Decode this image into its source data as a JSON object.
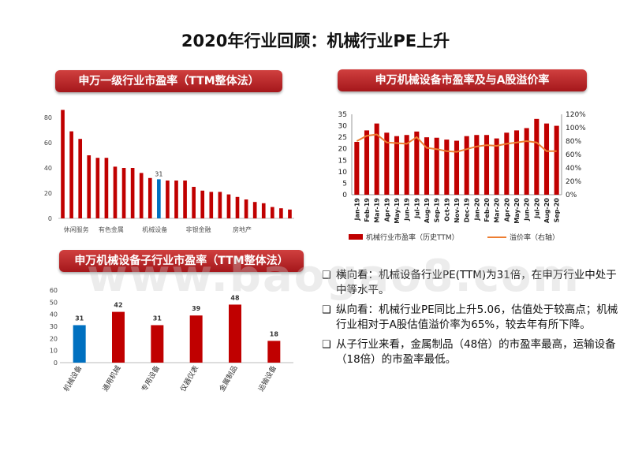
{
  "page_title": "2020年行业回顾：机械行业PE上升",
  "panels": {
    "industry_pe": "申万一级行业市盈率（TTM整体法）",
    "machinery_pe": "申万机械设备市盈率及与A股溢价率",
    "subsector_pe": "申万机械设备子行业市盈率（TTM整体法）"
  },
  "colors": {
    "red": "#c00000",
    "blue": "#0070c0",
    "orange": "#ed7d31",
    "panel": "#b31f23"
  },
  "chart_data": [
    {
      "type": "bar",
      "title": "申万一级行业市盈率（TTM整体法）",
      "values": [
        86,
        69,
        63,
        50,
        48,
        48,
        41,
        40,
        40,
        36,
        32,
        31,
        30,
        30,
        30,
        25,
        22,
        21,
        21,
        19,
        17,
        15,
        13,
        12,
        9,
        8,
        7
      ],
      "highlight_index": 11,
      "highlight_label": "31",
      "visible_category_labels": [
        "休闲服务",
        "有色金属",
        "机械设备",
        "非银金融",
        "房地产"
      ],
      "ylim": [
        0,
        90
      ],
      "yticks": [
        0,
        20,
        40,
        60,
        80
      ]
    },
    {
      "type": "bar+line",
      "title": "申万机械设备市盈率及与A股溢价率",
      "categories": [
        "Jan-19",
        "Feb-19",
        "Mar-19",
        "Apr-19",
        "May-19",
        "Jun-19",
        "Jul-19",
        "Aug-19",
        "Sep-19",
        "Oct-19",
        "Nov-19",
        "Dec-19",
        "Jan-20",
        "Feb-20",
        "Mar-20",
        "Apr-20",
        "May-20",
        "Jun-20",
        "Jul-20",
        "Aug-20",
        "Sep-20"
      ],
      "series": [
        {
          "name": "机械行业市盈率（历史TTM）",
          "axis": "left",
          "type": "bar",
          "values": [
            23,
            28,
            31,
            27,
            25.5,
            26,
            27.5,
            25,
            24.8,
            24,
            23.5,
            25.5,
            26,
            26,
            24.5,
            27,
            28,
            29,
            33,
            31,
            30
          ]
        },
        {
          "name": "溢价率（右轴）",
          "axis": "right",
          "type": "line",
          "values": [
            80,
            88,
            90,
            78,
            77,
            76,
            86,
            70,
            68,
            65,
            64,
            68,
            72,
            74,
            73,
            76,
            78,
            80,
            78,
            65,
            65
          ]
        }
      ],
      "left_ylim": [
        0,
        35
      ],
      "left_yticks": [
        0,
        5,
        10,
        15,
        20,
        25,
        30,
        35
      ],
      "right_ylim": [
        0,
        120
      ],
      "right_yticks": [
        "0%",
        "20%",
        "40%",
        "60%",
        "80%",
        "100%",
        "120%"
      ],
      "legend_placement": "bottom"
    },
    {
      "type": "bar",
      "title": "申万机械设备子行业市盈率（TTM整体法）",
      "categories": [
        "机械设备",
        "通用机械",
        "专用设备",
        "仪器仪表",
        "金属制品",
        "运输设备"
      ],
      "values": [
        31,
        42,
        31,
        39,
        48,
        18
      ],
      "highlight_index": 0,
      "ylim": [
        0,
        60
      ],
      "yticks": [
        0,
        10,
        20,
        30,
        40,
        50,
        60
      ]
    }
  ],
  "bullets": [
    {
      "icon": "checkbox-icon",
      "text": "横向看：机械设备行业PE(TTM)为31倍，在申万行业中处于中等水平。"
    },
    {
      "icon": "checkbox-icon",
      "text": "纵向看：机械行业PE同比上升5.06，估值处于较高点；机械行业相对于A股估值溢价率为65%，较去年有所下降。"
    },
    {
      "icon": "checkbox-icon",
      "text": "从子行业来看，金属制品（48倍）的市盈率最高，运输设备（18倍）的市盈率最低。"
    }
  ],
  "bullet_marker": "❑",
  "watermark": "www.baogao8.com"
}
